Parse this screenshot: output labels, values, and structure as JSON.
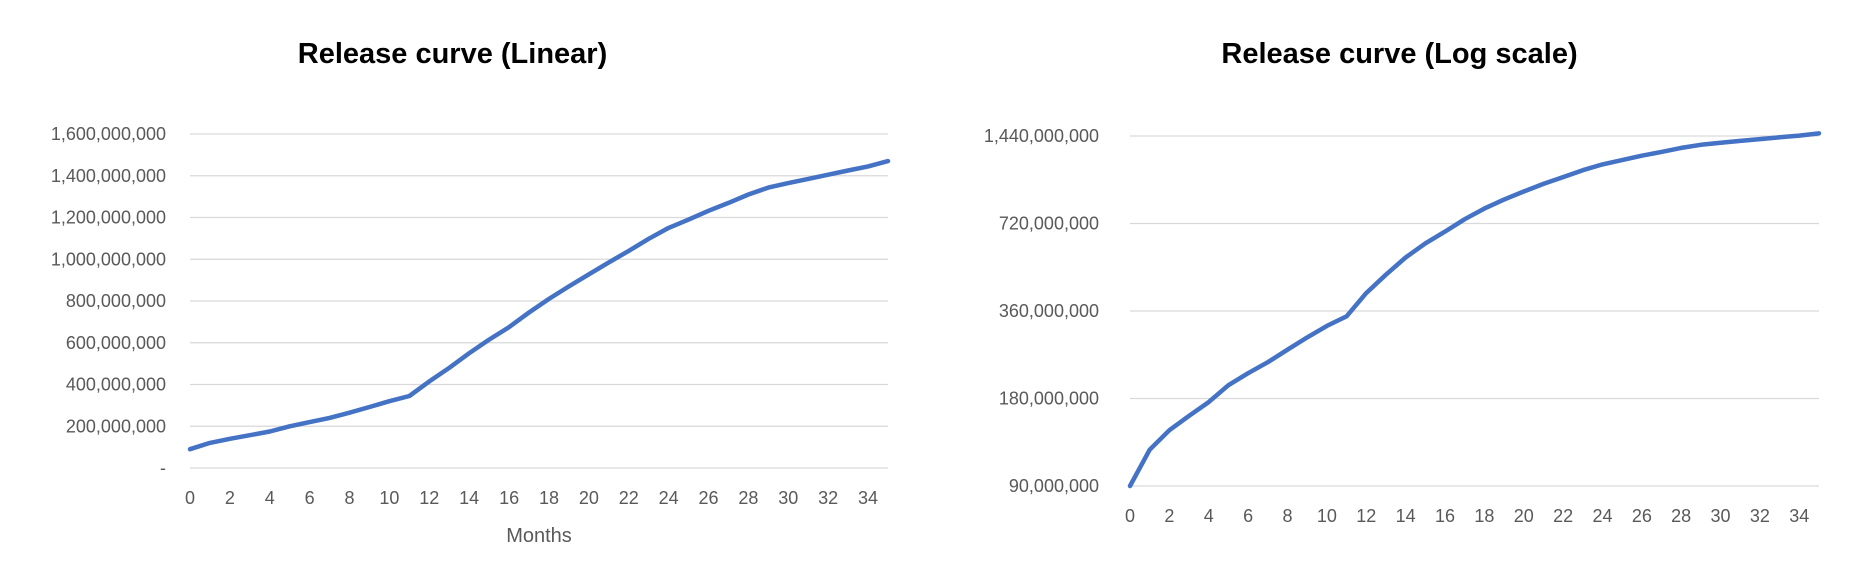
{
  "chart_data": [
    {
      "type": "line",
      "title": "Release curve (Linear)",
      "xlabel": "Months",
      "ylabel": "",
      "x_ticks": [
        "0",
        "2",
        "4",
        "6",
        "8",
        "10",
        "12",
        "14",
        "16",
        "18",
        "20",
        "22",
        "24",
        "26",
        "28",
        "30",
        "32",
        "34"
      ],
      "y_ticks": [
        "-",
        "200,000,000",
        "400,000,000",
        "600,000,000",
        "800,000,000",
        "1,000,000,000",
        "1,200,000,000",
        "1,400,000,000",
        "1,600,000,000"
      ],
      "y_tick_values": [
        0,
        200000000,
        400000000,
        600000000,
        800000000,
        1000000000,
        1200000000,
        1400000000,
        1600000000
      ],
      "xlim": [
        0,
        35
      ],
      "ylim": [
        0,
        1600000000
      ],
      "yscale": "linear",
      "grid": true,
      "line_color": "#4472c4",
      "series": [
        {
          "x": [
            0,
            1,
            2,
            3,
            4,
            5,
            6,
            7,
            8,
            9,
            10,
            11,
            12,
            13,
            14,
            15,
            16,
            17,
            18,
            19,
            20,
            21,
            22,
            23,
            24,
            25,
            26,
            27,
            28,
            29,
            30,
            31,
            32,
            33,
            34,
            35
          ],
          "values": [
            90000000,
            120000000,
            140000000,
            157000000,
            175000000,
            200000000,
            220000000,
            240000000,
            265000000,
            292000000,
            320000000,
            345000000,
            415000000,
            480000000,
            550000000,
            615000000,
            675000000,
            745000000,
            810000000,
            870000000,
            928000000,
            985000000,
            1040000000,
            1098000000,
            1150000000,
            1190000000,
            1232000000,
            1270000000,
            1310000000,
            1343000000,
            1365000000,
            1385000000,
            1405000000,
            1425000000,
            1445000000,
            1470000000
          ]
        }
      ]
    },
    {
      "type": "line",
      "title": "Release curve (Log scale)",
      "xlabel": "",
      "ylabel": "",
      "x_ticks": [
        "0",
        "2",
        "4",
        "6",
        "8",
        "10",
        "12",
        "14",
        "16",
        "18",
        "20",
        "22",
        "24",
        "26",
        "28",
        "30",
        "32",
        "34"
      ],
      "y_ticks": [
        "90,000,000",
        "180,000,000",
        "360,000,000",
        "720,000,000",
        "1,440,000,000"
      ],
      "y_tick_values": [
        90000000,
        180000000,
        360000000,
        720000000,
        1440000000
      ],
      "xlim": [
        0,
        35
      ],
      "ylim": [
        90000000,
        1440000000
      ],
      "yscale": "log2",
      "grid": true,
      "line_color": "#4472c4",
      "series": [
        {
          "x": [
            0,
            1,
            2,
            3,
            4,
            5,
            6,
            7,
            8,
            9,
            10,
            11,
            12,
            13,
            14,
            15,
            16,
            17,
            18,
            19,
            20,
            21,
            22,
            23,
            24,
            25,
            26,
            27,
            28,
            29,
            30,
            31,
            32,
            33,
            34,
            35
          ],
          "values": [
            90000000,
            120000000,
            140000000,
            157000000,
            175000000,
            200000000,
            220000000,
            240000000,
            265000000,
            292000000,
            320000000,
            345000000,
            415000000,
            480000000,
            550000000,
            615000000,
            675000000,
            745000000,
            810000000,
            870000000,
            928000000,
            985000000,
            1040000000,
            1098000000,
            1150000000,
            1190000000,
            1232000000,
            1270000000,
            1310000000,
            1343000000,
            1365000000,
            1385000000,
            1405000000,
            1425000000,
            1445000000,
            1470000000
          ]
        }
      ]
    }
  ]
}
